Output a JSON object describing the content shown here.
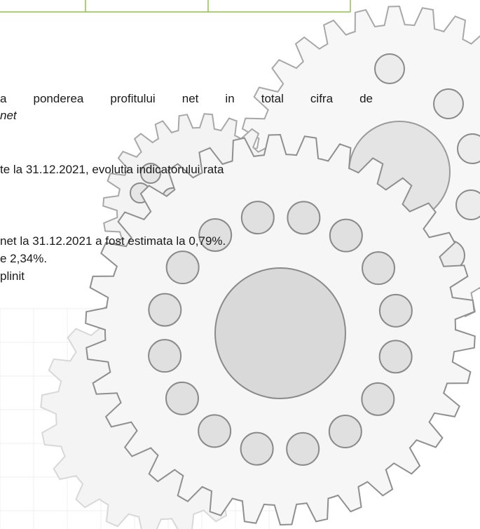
{
  "paragraphs": [
    {
      "lines": [
        "a ponderea profitului net in total cifra de",
        "net"
      ]
    },
    {
      "lines": [
        "te la 31.12.2021, evolutia indicatorului rata"
      ]
    },
    {
      "lines": [
        "net la 31.12.2021 a fost estimata la 0,79%.",
        "e 2,34%.",
        "plinit"
      ]
    }
  ]
}
